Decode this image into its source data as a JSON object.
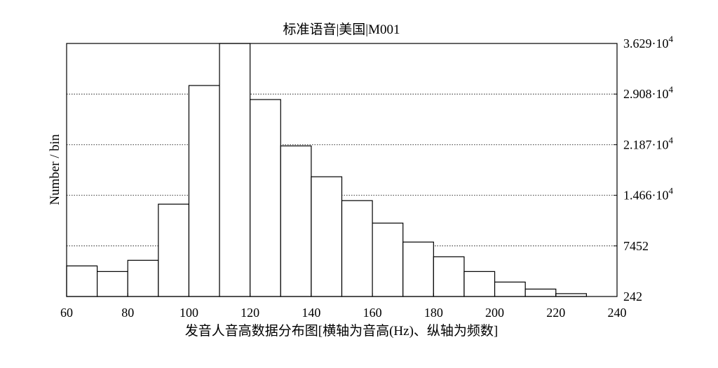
{
  "chart_data": {
    "type": "bar",
    "title": "标准语音|美国|M001",
    "xlabel": "发音人音高数据分布图[横轴为音高(Hz)、纵轴为频数]",
    "ylabel": "Number / bin",
    "xlim": [
      60,
      240
    ],
    "ylim": [
      242,
      36290
    ],
    "x_ticks": [
      "60",
      "80",
      "100",
      "120",
      "140",
      "160",
      "180",
      "200",
      "220",
      "240"
    ],
    "y_ticks": [
      {
        "value": 242,
        "label": "242"
      },
      {
        "value": 7452,
        "label": "7452"
      },
      {
        "value": 14660,
        "label": "1.466·10",
        "exp": "4"
      },
      {
        "value": 21870,
        "label": "2.187·10",
        "exp": "4"
      },
      {
        "value": 29080,
        "label": "2.908·10",
        "exp": "4"
      },
      {
        "value": 36290,
        "label": "3.629·10",
        "exp": "4"
      }
    ],
    "grid": "horizontal-dotted",
    "bin_width": 10,
    "bins": [
      {
        "x0": 60,
        "x1": 70,
        "value": 4600
      },
      {
        "x0": 70,
        "x1": 80,
        "value": 3800
      },
      {
        "x0": 80,
        "x1": 90,
        "value": 5400
      },
      {
        "x0": 90,
        "x1": 100,
        "value": 13400
      },
      {
        "x0": 100,
        "x1": 110,
        "value": 30300
      },
      {
        "x0": 110,
        "x1": 120,
        "value": 36290
      },
      {
        "x0": 120,
        "x1": 130,
        "value": 28300
      },
      {
        "x0": 130,
        "x1": 140,
        "value": 21700
      },
      {
        "x0": 140,
        "x1": 150,
        "value": 17300
      },
      {
        "x0": 150,
        "x1": 160,
        "value": 13900
      },
      {
        "x0": 160,
        "x1": 170,
        "value": 10700
      },
      {
        "x0": 170,
        "x1": 180,
        "value": 8000
      },
      {
        "x0": 180,
        "x1": 190,
        "value": 5900
      },
      {
        "x0": 190,
        "x1": 200,
        "value": 3800
      },
      {
        "x0": 200,
        "x1": 210,
        "value": 2300
      },
      {
        "x0": 210,
        "x1": 220,
        "value": 1300
      },
      {
        "x0": 220,
        "x1": 230,
        "value": 650
      }
    ]
  }
}
